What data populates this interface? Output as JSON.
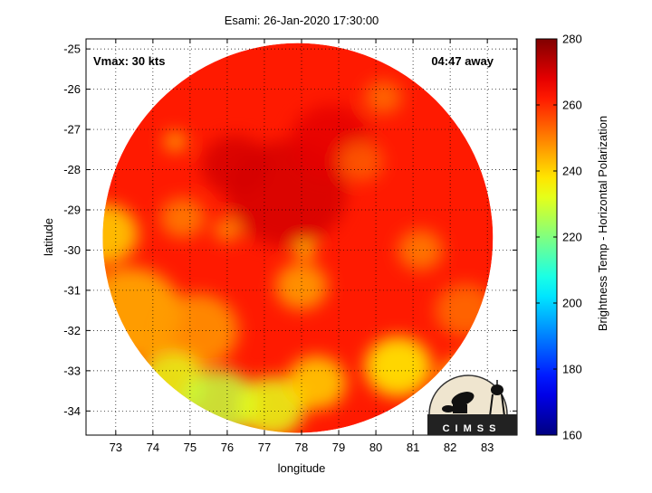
{
  "chart_data": {
    "type": "heatmap",
    "title": "Esami: 26-Jan-2020 17:30:00",
    "xlabel": "longitude",
    "ylabel": "latitude",
    "xlim": [
      72.2,
      83.8
    ],
    "ylim": [
      -34.6,
      -24.75
    ],
    "xticks": [
      73,
      74,
      75,
      76,
      77,
      78,
      79,
      80,
      81,
      82,
      83
    ],
    "yticks": [
      -25,
      -26,
      -27,
      -28,
      -29,
      -30,
      -31,
      -32,
      -33,
      -34
    ],
    "grid": true,
    "annotations": {
      "vmax": "Vmax: 30 kts",
      "time_away": "04:47 away"
    },
    "colorbar": {
      "label": "Brightness Temp - Horizontal Polarization",
      "range": [
        160,
        280
      ],
      "ticks": [
        160,
        180,
        200,
        220,
        240,
        260,
        280
      ],
      "colormap": "jet"
    },
    "swath": {
      "center_lon": 77.9,
      "center_lat": -29.7,
      "radius_deg": 5.25
    },
    "field": {
      "background_value": 262,
      "features": [
        {
          "lon": 77.6,
          "lat": -28.6,
          "r": 1.6,
          "value": 270
        },
        {
          "lon": 76.2,
          "lat": -27.9,
          "r": 0.9,
          "value": 270
        },
        {
          "lon": 78.8,
          "lat": -27.3,
          "r": 1.1,
          "value": 268
        },
        {
          "lon": 74.6,
          "lat": -27.3,
          "r": 0.3,
          "value": 245
        },
        {
          "lon": 80.2,
          "lat": -26.2,
          "r": 0.5,
          "value": 252
        },
        {
          "lon": 79.6,
          "lat": -27.8,
          "r": 0.6,
          "value": 254
        },
        {
          "lon": 78.1,
          "lat": -30.0,
          "r": 0.25,
          "value": 238
        },
        {
          "lon": 78.0,
          "lat": -30.9,
          "r": 0.7,
          "value": 246
        },
        {
          "lon": 76.0,
          "lat": -29.5,
          "r": 0.35,
          "value": 248
        },
        {
          "lon": 74.8,
          "lat": -29.2,
          "r": 0.6,
          "value": 250
        },
        {
          "lon": 72.7,
          "lat": -29.6,
          "r": 0.9,
          "value": 240
        },
        {
          "lon": 73.4,
          "lat": -31.6,
          "r": 1.4,
          "value": 244
        },
        {
          "lon": 75.2,
          "lat": -32.0,
          "r": 1.1,
          "value": 247
        },
        {
          "lon": 81.2,
          "lat": -30.0,
          "r": 0.6,
          "value": 250
        },
        {
          "lon": 82.4,
          "lat": -31.5,
          "r": 0.8,
          "value": 252
        },
        {
          "lon": 74.5,
          "lat": -33.3,
          "r": 0.9,
          "value": 232
        },
        {
          "lon": 75.8,
          "lat": -33.8,
          "r": 1.0,
          "value": 228
        },
        {
          "lon": 77.2,
          "lat": -33.9,
          "r": 0.9,
          "value": 232
        },
        {
          "lon": 78.4,
          "lat": -33.3,
          "r": 0.8,
          "value": 240
        },
        {
          "lon": 80.6,
          "lat": -32.9,
          "r": 0.9,
          "value": 236
        },
        {
          "lon": 82.4,
          "lat": -33.2,
          "r": 0.7,
          "value": 242
        }
      ]
    }
  },
  "logo": {
    "text": "CIMSS"
  }
}
